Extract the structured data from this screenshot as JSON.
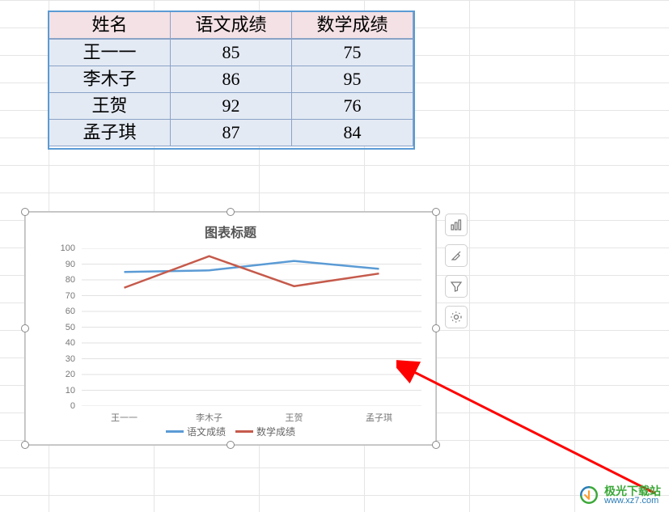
{
  "table": {
    "headers": [
      "姓名",
      "语文成绩",
      "数学成绩"
    ],
    "rows": [
      [
        "王一一",
        "85",
        "75"
      ],
      [
        "李木子",
        "86",
        "95"
      ],
      [
        "王贺",
        "92",
        "76"
      ],
      [
        "孟子琪",
        "87",
        "84"
      ]
    ],
    "header_bg": "#f3e1e5",
    "cell_bg": "#e4eaf4",
    "border_color": "#8aa3c7"
  },
  "chart": {
    "type": "line",
    "title": "图表标题",
    "title_fontsize": 16,
    "categories": [
      "王一一",
      "李木子",
      "王贺",
      "孟子琪"
    ],
    "series": [
      {
        "name": "语文成绩",
        "color": "#5b9bd5",
        "values": [
          85,
          86,
          92,
          87
        ]
      },
      {
        "name": "数学成绩",
        "color": "#c55a4b",
        "values": [
          75,
          95,
          76,
          84
        ]
      }
    ],
    "ylim": [
      0,
      100
    ],
    "ytick_step": 10,
    "grid_color": "#e2e2e2",
    "background_color": "#ffffff",
    "label_fontsize": 11,
    "line_width": 2.5
  },
  "tools": {
    "items": [
      {
        "name": "chart-type-icon"
      },
      {
        "name": "brush-icon"
      },
      {
        "name": "filter-icon"
      },
      {
        "name": "settings-icon"
      }
    ]
  },
  "watermark": {
    "name": "极光下载站",
    "url": "www.xz7.com",
    "name_color": "#3ba838",
    "url_color": "#2a7db8"
  },
  "arrow": {
    "color": "#ff0000"
  }
}
